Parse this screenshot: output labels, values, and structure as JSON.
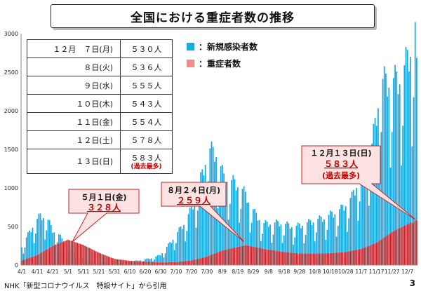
{
  "title": "全国における重症者数の推移",
  "legend": [
    {
      "label": "：新規感染者数",
      "color": "#1aaae2"
    },
    {
      "label": "：重症者数",
      "color": "#f08c8c"
    }
  ],
  "table": {
    "rows": [
      {
        "date": "１２月　７日(月)",
        "value": "５３０人"
      },
      {
        "date": "８日(火)",
        "value": "５３６人"
      },
      {
        "date": "９日(水)",
        "value": "５５５人"
      },
      {
        "date": "１０日(木)",
        "value": "５４３人"
      },
      {
        "date": "１１日(金)",
        "value": "５５４人"
      },
      {
        "date": "１２日(土)",
        "value": "５７８人"
      },
      {
        "date": "１３日(日)",
        "value": "５８３人",
        "note": "(過去最多)"
      }
    ]
  },
  "callouts": [
    {
      "line1": "５月１日(金)",
      "line2": "３２８人",
      "line3": ""
    },
    {
      "line1": "８月２４日(月)",
      "line2": "２５９人",
      "line3": ""
    },
    {
      "line1": "１２月１３日(日)",
      "line2": "５８３人",
      "line3": "(過去最多)"
    }
  ],
  "footer": "NHK「新型コロナウイルス　特設サイト」から引用",
  "page_number": "3",
  "chart_data": {
    "type": "bar",
    "title": "全国における重症者数の推移",
    "ylim": [
      0,
      3000
    ],
    "y_ticks": [
      "0",
      "500",
      "1000",
      "1500",
      "2000",
      "2500",
      "3000"
    ],
    "x_ticks": [
      "4/1",
      "4/11",
      "4/21",
      "5/1",
      "5/11",
      "5/21",
      "5/31",
      "6/10",
      "6/20",
      "6/30",
      "7/10",
      "7/20",
      "7/30",
      "8/9",
      "8/19",
      "8/29",
      "9/8",
      "9/18",
      "9/28",
      "10/8",
      "10/18",
      "10/28",
      "11/7",
      "11/17",
      "11/27",
      "12/7"
    ],
    "x_start": "2020-04-01",
    "x_end": "2020-12-13",
    "series": [
      {
        "name": "新規感染者数",
        "type": "bar",
        "color": "#1aaae2",
        "anchors": [
          [
            "2020-04-01",
            230
          ],
          [
            "2020-04-05",
            380
          ],
          [
            "2020-04-09",
            520
          ],
          [
            "2020-04-13",
            620
          ],
          [
            "2020-04-17",
            600
          ],
          [
            "2020-04-21",
            440
          ],
          [
            "2020-04-25",
            380
          ],
          [
            "2020-04-29",
            260
          ],
          [
            "2020-05-04",
            180
          ],
          [
            "2020-05-09",
            90
          ],
          [
            "2020-05-14",
            55
          ],
          [
            "2020-05-21",
            30
          ],
          [
            "2020-06-01",
            40
          ],
          [
            "2020-06-15",
            55
          ],
          [
            "2020-06-25",
            90
          ],
          [
            "2020-06-30",
            130
          ],
          [
            "2020-07-05",
            250
          ],
          [
            "2020-07-10",
            380
          ],
          [
            "2020-07-15",
            520
          ],
          [
            "2020-07-20",
            700
          ],
          [
            "2020-07-25",
            1000
          ],
          [
            "2020-07-31",
            1450
          ],
          [
            "2020-08-05",
            1400
          ],
          [
            "2020-08-10",
            1100
          ],
          [
            "2020-08-15",
            1050
          ],
          [
            "2020-08-20",
            1000
          ],
          [
            "2020-08-25",
            850
          ],
          [
            "2020-08-30",
            650
          ],
          [
            "2020-09-05",
            520
          ],
          [
            "2020-09-15",
            530
          ],
          [
            "2020-09-25",
            480
          ],
          [
            "2020-10-05",
            540
          ],
          [
            "2020-10-15",
            600
          ],
          [
            "2020-10-25",
            700
          ],
          [
            "2020-11-01",
            850
          ],
          [
            "2020-11-07",
            1150
          ],
          [
            "2020-11-14",
            1500
          ],
          [
            "2020-11-20",
            2300
          ],
          [
            "2020-11-27",
            2300
          ],
          [
            "2020-12-03",
            2350
          ],
          [
            "2020-12-09",
            2700
          ],
          [
            "2020-12-12",
            3000
          ],
          [
            "2020-12-13",
            2400
          ]
        ]
      },
      {
        "name": "重症者数",
        "type": "bar",
        "color": "#c0262d",
        "anchors": [
          [
            "2020-04-01",
            60
          ],
          [
            "2020-04-11",
            130
          ],
          [
            "2020-04-21",
            250
          ],
          [
            "2020-05-01",
            328
          ],
          [
            "2020-05-11",
            260
          ],
          [
            "2020-05-21",
            160
          ],
          [
            "2020-05-31",
            80
          ],
          [
            "2020-06-10",
            55
          ],
          [
            "2020-06-20",
            45
          ],
          [
            "2020-06-30",
            35
          ],
          [
            "2020-07-10",
            40
          ],
          [
            "2020-07-20",
            60
          ],
          [
            "2020-07-30",
            110
          ],
          [
            "2020-08-09",
            190
          ],
          [
            "2020-08-24",
            259
          ],
          [
            "2020-09-08",
            200
          ],
          [
            "2020-09-18",
            170
          ],
          [
            "2020-09-28",
            150
          ],
          [
            "2020-10-08",
            150
          ],
          [
            "2020-10-18",
            155
          ],
          [
            "2020-10-28",
            170
          ],
          [
            "2020-11-07",
            210
          ],
          [
            "2020-11-17",
            290
          ],
          [
            "2020-11-27",
            430
          ],
          [
            "2020-12-07",
            530
          ],
          [
            "2020-12-08",
            536
          ],
          [
            "2020-12-09",
            555
          ],
          [
            "2020-12-10",
            543
          ],
          [
            "2020-12-11",
            554
          ],
          [
            "2020-12-12",
            578
          ],
          [
            "2020-12-13",
            583
          ]
        ]
      }
    ],
    "annotations": [
      {
        "date": "2020-05-01",
        "value": 328
      },
      {
        "date": "2020-08-24",
        "value": 259
      },
      {
        "date": "2020-12-13",
        "value": 583
      }
    ],
    "grid": false
  }
}
